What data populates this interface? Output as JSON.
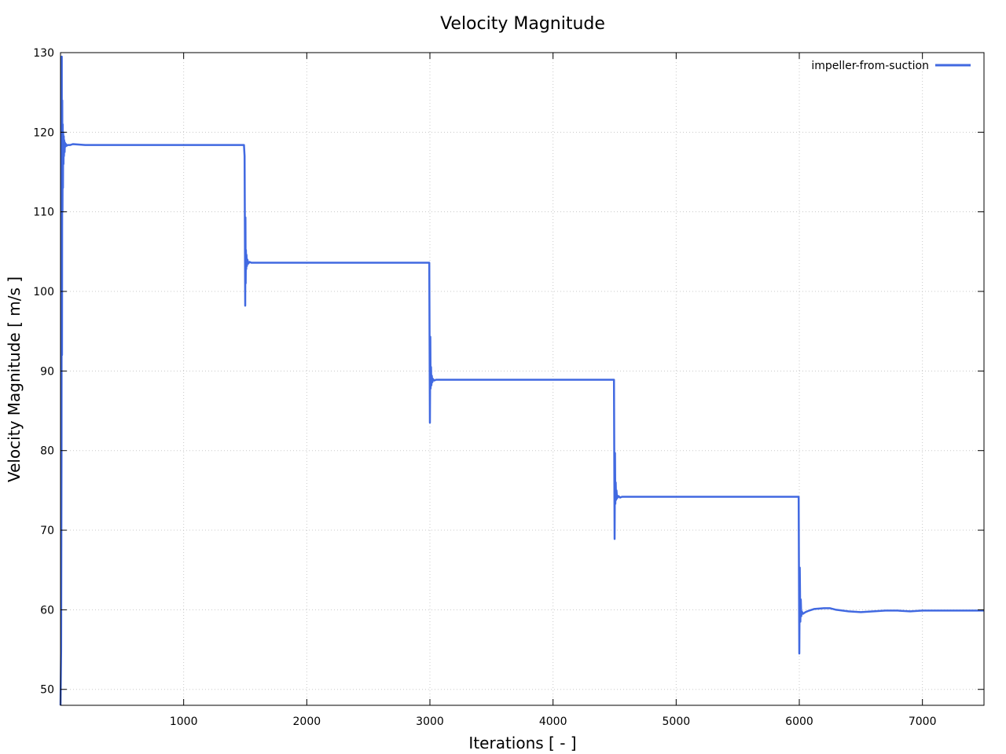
{
  "chart_data": {
    "type": "line",
    "title": "Velocity Magnitude",
    "xlabel": "Iterations [ - ]",
    "ylabel": "Velocity Magnitude [ m/s ]",
    "xlim": [
      0,
      7500
    ],
    "ylim": [
      48,
      130
    ],
    "xticks": [
      1000,
      2000,
      3000,
      4000,
      5000,
      6000,
      7000
    ],
    "yticks": [
      50,
      60,
      70,
      80,
      90,
      100,
      110,
      120,
      130
    ],
    "grid": true,
    "legend_position": "top-right",
    "series": [
      {
        "name": "impeller-from-suction",
        "color": "#4169e1",
        "x": [
          0,
          5,
          8,
          10,
          12,
          14,
          16,
          18,
          20,
          22,
          24,
          26,
          28,
          30,
          33,
          36,
          40,
          45,
          50,
          60,
          80,
          100,
          200,
          500,
          1000,
          1400,
          1490,
          1495,
          1500,
          1502,
          1504,
          1506,
          1508,
          1510,
          1514,
          1518,
          1525,
          1535,
          1550,
          1600,
          2000,
          2500,
          2995,
          3000,
          3003,
          3006,
          3009,
          3012,
          3015,
          3020,
          3025,
          3035,
          3050,
          3100,
          3500,
          4000,
          4495,
          4500,
          4503,
          4506,
          4509,
          4512,
          4515,
          4520,
          4530,
          4545,
          4560,
          4600,
          5000,
          5500,
          5995,
          6000,
          6004,
          6008,
          6012,
          6016,
          6020,
          6030,
          6050,
          6080,
          6120,
          6200,
          6250,
          6300,
          6400,
          6500,
          6600,
          6700,
          6800,
          6900,
          7000,
          7200,
          7500
        ],
        "y": [
          48,
          55,
          80,
          129.5,
          92,
          124,
          110,
          121,
          113,
          120,
          116,
          119.5,
          117,
          119,
          117.5,
          118.7,
          118.2,
          118.5,
          118.3,
          118.4,
          118.4,
          118.5,
          118.4,
          118.4,
          118.4,
          118.4,
          118.4,
          117,
          98.2,
          109.3,
          101,
          105.2,
          102.8,
          104.6,
          103.2,
          104,
          103.5,
          103.7,
          103.6,
          103.6,
          103.6,
          103.6,
          103.6,
          83.5,
          94.3,
          87.8,
          90.5,
          88.2,
          89.4,
          88.6,
          89,
          88.8,
          88.9,
          88.9,
          88.9,
          88.9,
          88.9,
          68.9,
          79.7,
          73.3,
          76,
          73.8,
          75,
          74,
          74.3,
          74.1,
          74.2,
          74.2,
          74.2,
          74.2,
          74.2,
          54.5,
          65.3,
          58.5,
          61.3,
          59.2,
          59.8,
          59.5,
          59.7,
          59.9,
          60.1,
          60.2,
          60.2,
          60,
          59.8,
          59.7,
          59.8,
          59.9,
          59.9,
          59.8,
          59.9,
          59.9,
          59.9
        ]
      }
    ]
  }
}
